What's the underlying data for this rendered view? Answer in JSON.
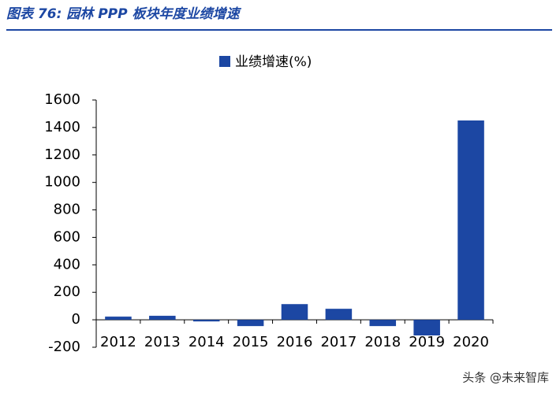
{
  "chart_data": {
    "type": "bar",
    "title": "图表 76: 园林 PPP 板块年度业绩增速",
    "categories": [
      "2012",
      "2013",
      "2014",
      "2015",
      "2016",
      "2017",
      "2018",
      "2019",
      "2020"
    ],
    "series": [
      {
        "name": "业绩增速(%)",
        "color": "#1c47a3",
        "values": [
          23,
          29,
          -12,
          -46,
          114,
          80,
          -46,
          -114,
          1451
        ]
      }
    ],
    "ylim": [
      -200,
      1600
    ],
    "yticks": [
      -200,
      0,
      200,
      400,
      600,
      800,
      1000,
      1200,
      1400,
      1600
    ],
    "legend": "top",
    "grid": false,
    "watermark": "头条 @未来智库"
  }
}
